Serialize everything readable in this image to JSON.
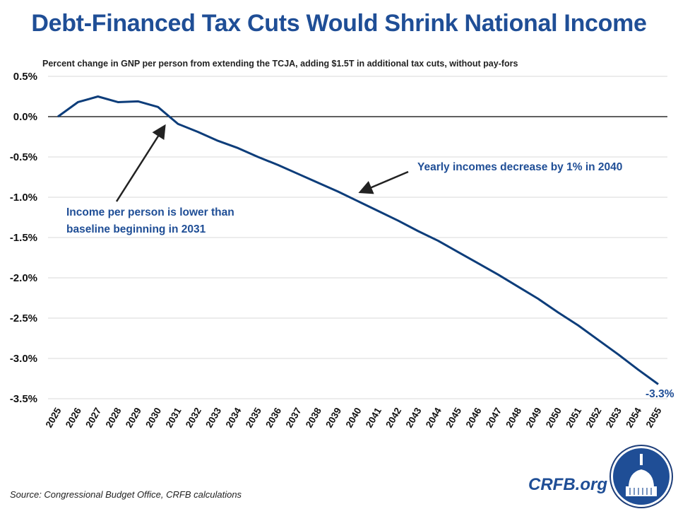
{
  "header": {
    "title": "Debt-Financed Tax Cuts Would Shrink National Income",
    "subtitle": "Percent change in GNP per person from extending the TCJA, adding $1.5T in additional tax cuts, without pay-fors"
  },
  "footer": {
    "source": "Source: Congressional Budget Office, CRFB calculations",
    "brand": "CRFB.org",
    "logo_icon": "capitol-dome-icon"
  },
  "colors": {
    "line": "#0d3d7a",
    "title": "#1f4e96",
    "grid": "#d9d9d9"
  },
  "chart_data": {
    "type": "line",
    "title": "Debt-Financed Tax Cuts Would Shrink National Income",
    "subtitle": "Percent change in GNP per person from extending the TCJA, adding $1.5T in additional tax cuts, without pay-fors",
    "xlabel": "",
    "ylabel": "",
    "ylim": [
      -3.5,
      0.5
    ],
    "yticks": [
      0.5,
      0,
      -0.5,
      -1,
      -1.5,
      -2,
      -2.5,
      -3,
      -3.5
    ],
    "ytick_labels": [
      "0.5%",
      "0.0%",
      "-0.5%",
      "-1.0%",
      "-1.5%",
      "-2.0%",
      "-2.5%",
      "-3.0%",
      "-3.5%"
    ],
    "grid": true,
    "x": [
      2025,
      2026,
      2027,
      2028,
      2029,
      2030,
      2031,
      2032,
      2033,
      2034,
      2035,
      2036,
      2037,
      2038,
      2039,
      2040,
      2041,
      2042,
      2043,
      2044,
      2045,
      2046,
      2047,
      2048,
      2049,
      2050,
      2051,
      2052,
      2053,
      2054,
      2055
    ],
    "series": [
      {
        "name": "GNP per person change",
        "values": [
          0,
          0.18,
          0.25,
          0.18,
          0.19,
          0.12,
          -0.09,
          -0.19,
          -0.3,
          -0.39,
          -0.5,
          -0.6,
          -0.71,
          -0.82,
          -0.93,
          -1.05,
          -1.17,
          -1.29,
          -1.42,
          -1.54,
          -1.68,
          -1.82,
          -1.96,
          -2.11,
          -2.26,
          -2.43,
          -2.59,
          -2.77,
          -2.95,
          -3.14,
          -3.32
        ]
      }
    ],
    "annotations": [
      {
        "text_line1": "Income per person is lower than",
        "text_line2": "baseline beginning in 2031",
        "target_x": 2030.5
      },
      {
        "text": "Yearly incomes decrease by 1% in 2040",
        "target_x": 2040
      },
      {
        "text": "-3.3%",
        "target_x": 2055
      }
    ]
  }
}
